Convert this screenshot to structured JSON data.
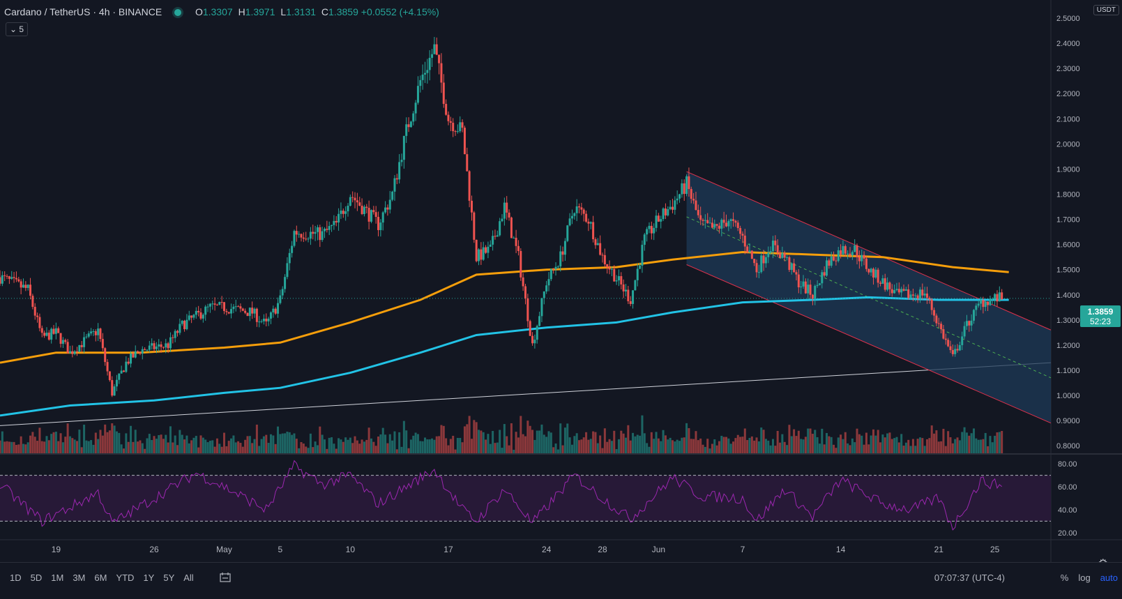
{
  "header": {
    "symbol": "Cardano / TetherUS · 4h · BINANCE",
    "o_label": "O",
    "o_value": "1.3307",
    "h_label": "H",
    "h_value": "1.3971",
    "l_label": "L",
    "l_value": "1.3131",
    "c_label": "C",
    "c_value": "1.3859",
    "change": "+0.0552 (+4.15%)",
    "indicator_count": "5",
    "currency": "USDT"
  },
  "price_tag": {
    "price": "1.3859",
    "countdown": "52:23"
  },
  "bottom_bar": {
    "ranges": [
      "1D",
      "5D",
      "1M",
      "3M",
      "6M",
      "YTD",
      "1Y",
      "5Y",
      "All"
    ],
    "time": "07:07:37 (UTC-4)",
    "percent": "%",
    "log": "log",
    "auto": "auto"
  },
  "colors": {
    "up": "#26a69a",
    "down": "#ef5350",
    "ma_fast": "#f59e0b",
    "ma_slow": "#22c3e6",
    "rsi": "#9c27b0",
    "channel_border": "#e0314b",
    "channel_fill": "#1d3a57",
    "background": "#131722"
  },
  "chart_data": [
    {
      "type": "candlestick",
      "title": "Cardano / TetherUS · 4h · BINANCE",
      "x_tick_labels": [
        "19",
        "26",
        "May",
        "5",
        "10",
        "17",
        "24",
        "28",
        "Jun",
        "7",
        "14",
        "21",
        "25"
      ],
      "x_tick_dates": [
        "2021-04-19",
        "2021-04-26",
        "2021-05-01",
        "2021-05-05",
        "2021-05-10",
        "2021-05-17",
        "2021-05-24",
        "2021-05-28",
        "2021-06-01",
        "2021-06-07",
        "2021-06-14",
        "2021-06-21",
        "2021-06-25"
      ],
      "y_tick_labels": [
        "0.8000",
        "0.9000",
        "1.0000",
        "1.1000",
        "1.2000",
        "1.3000",
        "1.4000",
        "1.5000",
        "1.6000",
        "1.7000",
        "1.8000",
        "1.9000",
        "2.0000",
        "2.1000",
        "2.2000",
        "2.3000",
        "2.4000",
        "2.5000"
      ],
      "ylim": [
        0.77,
        2.55
      ],
      "last_price": 1.3859,
      "close_path": [
        [
          "2021-04-15",
          1.47
        ],
        [
          "2021-04-17",
          1.42
        ],
        [
          "2021-04-18",
          1.23
        ],
        [
          "2021-04-19",
          1.25
        ],
        [
          "2021-04-20",
          1.17
        ],
        [
          "2021-04-22",
          1.26
        ],
        [
          "2021-04-23",
          1.01
        ],
        [
          "2021-04-24",
          1.13
        ],
        [
          "2021-04-25",
          1.18
        ],
        [
          "2021-04-27",
          1.2
        ],
        [
          "2021-04-28",
          1.28
        ],
        [
          "2021-04-30",
          1.35
        ],
        [
          "2021-05-01",
          1.35
        ],
        [
          "2021-05-03",
          1.33
        ],
        [
          "2021-05-04",
          1.28
        ],
        [
          "2021-05-05",
          1.38
        ],
        [
          "2021-05-06",
          1.65
        ],
        [
          "2021-05-08",
          1.64
        ],
        [
          "2021-05-09",
          1.68
        ],
        [
          "2021-05-10",
          1.8
        ],
        [
          "2021-05-12",
          1.68
        ],
        [
          "2021-05-13",
          1.8
        ],
        [
          "2021-05-14",
          2.05
        ],
        [
          "2021-05-15",
          2.25
        ],
        [
          "2021-05-16",
          2.38
        ],
        [
          "2021-05-17",
          2.1
        ],
        [
          "2021-05-18",
          2.05
        ],
        [
          "2021-05-19",
          1.55
        ],
        [
          "2021-05-20",
          1.58
        ],
        [
          "2021-05-21",
          1.75
        ],
        [
          "2021-05-22",
          1.55
        ],
        [
          "2021-05-23",
          1.2
        ],
        [
          "2021-05-24",
          1.45
        ],
        [
          "2021-05-25",
          1.55
        ],
        [
          "2021-05-26",
          1.75
        ],
        [
          "2021-05-27",
          1.7
        ],
        [
          "2021-05-28",
          1.55
        ],
        [
          "2021-05-30",
          1.38
        ],
        [
          "2021-05-31",
          1.62
        ],
        [
          "2021-06-01",
          1.7
        ],
        [
          "2021-06-02",
          1.76
        ],
        [
          "2021-06-03",
          1.84
        ],
        [
          "2021-06-04",
          1.68
        ],
        [
          "2021-06-05",
          1.66
        ],
        [
          "2021-06-06",
          1.7
        ],
        [
          "2021-06-07",
          1.63
        ],
        [
          "2021-06-08",
          1.5
        ],
        [
          "2021-06-09",
          1.6
        ],
        [
          "2021-06-10",
          1.55
        ],
        [
          "2021-06-11",
          1.45
        ],
        [
          "2021-06-12",
          1.4
        ],
        [
          "2021-06-13",
          1.52
        ],
        [
          "2021-06-14",
          1.58
        ],
        [
          "2021-06-15",
          1.58
        ],
        [
          "2021-06-16",
          1.5
        ],
        [
          "2021-06-17",
          1.45
        ],
        [
          "2021-06-18",
          1.4
        ],
        [
          "2021-06-19",
          1.4
        ],
        [
          "2021-06-20",
          1.41
        ],
        [
          "2021-06-21",
          1.28
        ],
        [
          "2021-06-22",
          1.15
        ],
        [
          "2021-06-23",
          1.28
        ],
        [
          "2021-06-24",
          1.37
        ],
        [
          "2021-06-25",
          1.3859
        ]
      ],
      "moving_averages": [
        {
          "values": [
            [
              "2021-04-15",
              1.13
            ],
            [
              "2021-04-19",
              1.17
            ],
            [
              "2021-04-25",
              1.17
            ],
            [
              "2021-05-01",
              1.19
            ],
            [
              "2021-05-05",
              1.21
            ],
            [
              "2021-05-10",
              1.29
            ],
            [
              "2021-05-15",
              1.38
            ],
            [
              "2021-05-19",
              1.48
            ],
            [
              "2021-05-24",
              1.5
            ],
            [
              "2021-05-29",
              1.51
            ],
            [
              "2021-06-02",
              1.54
            ],
            [
              "2021-06-07",
              1.57
            ],
            [
              "2021-06-12",
              1.56
            ],
            [
              "2021-06-17",
              1.55
            ],
            [
              "2021-06-22",
              1.51
            ],
            [
              "2021-06-26",
              1.49
            ]
          ]
        },
        {
          "values": [
            [
              "2021-04-15",
              0.92
            ],
            [
              "2021-04-20",
              0.96
            ],
            [
              "2021-04-26",
              0.98
            ],
            [
              "2021-05-01",
              1.01
            ],
            [
              "2021-05-05",
              1.03
            ],
            [
              "2021-05-10",
              1.09
            ],
            [
              "2021-05-15",
              1.17
            ],
            [
              "2021-05-19",
              1.24
            ],
            [
              "2021-05-24",
              1.27
            ],
            [
              "2021-05-29",
              1.29
            ],
            [
              "2021-06-02",
              1.33
            ],
            [
              "2021-06-07",
              1.37
            ],
            [
              "2021-06-12",
              1.38
            ],
            [
              "2021-06-16",
              1.39
            ],
            [
              "2021-06-21",
              1.38
            ],
            [
              "2021-06-26",
              1.38
            ]
          ]
        }
      ],
      "trendline": [
        [
          "2021-04-15",
          0.88
        ],
        [
          "2021-06-29",
          1.13
        ]
      ],
      "descending_channel": {
        "upper": [
          [
            "2021-06-03",
            1.89
          ],
          [
            "2021-06-29",
            1.26
          ]
        ],
        "middle": [
          [
            "2021-06-03",
            1.71
          ],
          [
            "2021-06-29",
            1.07
          ]
        ],
        "lower": [
          [
            "2021-06-03",
            1.52
          ],
          [
            "2021-06-29",
            0.89
          ]
        ]
      }
    },
    {
      "type": "line",
      "title": "RSI",
      "y_tick_labels": [
        "20.00",
        "40.00",
        "60.00",
        "80.00"
      ],
      "ylim": [
        15,
        88
      ],
      "band": [
        30,
        70
      ],
      "values": [
        [
          "2021-04-15",
          62
        ],
        [
          "2021-04-18",
          30
        ],
        [
          "2021-04-20",
          42
        ],
        [
          "2021-04-22",
          55
        ],
        [
          "2021-04-23",
          28
        ],
        [
          "2021-04-26",
          50
        ],
        [
          "2021-04-29",
          72
        ],
        [
          "2021-05-01",
          60
        ],
        [
          "2021-05-04",
          40
        ],
        [
          "2021-05-06",
          78
        ],
        [
          "2021-05-08",
          62
        ],
        [
          "2021-05-10",
          70
        ],
        [
          "2021-05-12",
          45
        ],
        [
          "2021-05-16",
          75
        ],
        [
          "2021-05-18",
          40
        ],
        [
          "2021-05-19",
          30
        ],
        [
          "2021-05-21",
          58
        ],
        [
          "2021-05-23",
          28
        ],
        [
          "2021-05-26",
          70
        ],
        [
          "2021-05-28",
          50
        ],
        [
          "2021-05-30",
          32
        ],
        [
          "2021-06-02",
          68
        ],
        [
          "2021-06-04",
          52
        ],
        [
          "2021-06-07",
          50
        ],
        [
          "2021-06-08",
          30
        ],
        [
          "2021-06-10",
          58
        ],
        [
          "2021-06-12",
          34
        ],
        [
          "2021-06-14",
          66
        ],
        [
          "2021-06-17",
          45
        ],
        [
          "2021-06-19",
          40
        ],
        [
          "2021-06-21",
          50
        ],
        [
          "2021-06-22",
          25
        ],
        [
          "2021-06-24",
          65
        ],
        [
          "2021-06-25",
          62
        ]
      ]
    }
  ]
}
